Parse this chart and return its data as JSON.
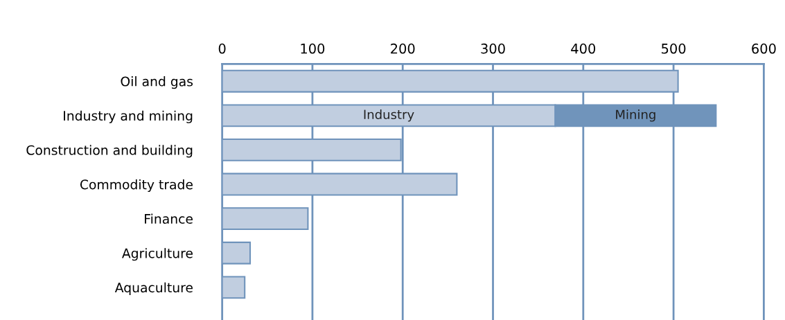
{
  "chart_data": {
    "type": "bar",
    "orientation": "horizontal",
    "stacked": true,
    "categories": [
      "Oil and gas",
      "Industry and mining",
      "Construction and building",
      "Commodity trade",
      "Finance",
      "Agriculture",
      "Aquaculture"
    ],
    "series": [
      {
        "color": "#c1cee0",
        "values": [
          505,
          369,
          198,
          260,
          95,
          31,
          25
        ],
        "value_labels": [
          null,
          "Industry",
          null,
          null,
          null,
          null,
          null
        ]
      },
      {
        "color": "#7094bb",
        "values": [
          null,
          178,
          null,
          null,
          null,
          null,
          null
        ],
        "value_labels": [
          null,
          "Mining",
          null,
          null,
          null,
          null,
          null
        ]
      }
    ],
    "xlim": [
      0,
      600
    ],
    "xticks": [
      0,
      100,
      200,
      300,
      400,
      500,
      600
    ],
    "grid": "x"
  }
}
